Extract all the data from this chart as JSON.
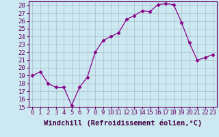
{
  "x": [
    0,
    1,
    2,
    3,
    4,
    5,
    6,
    7,
    8,
    9,
    10,
    11,
    12,
    13,
    14,
    15,
    16,
    17,
    18,
    19,
    20,
    21,
    22,
    23
  ],
  "y": [
    19.0,
    19.5,
    18.0,
    17.5,
    17.5,
    15.2,
    17.5,
    18.8,
    22.0,
    23.5,
    24.0,
    24.5,
    26.2,
    26.7,
    27.3,
    27.2,
    28.1,
    28.2,
    28.1,
    25.8,
    23.2,
    21.0,
    21.3,
    21.7
  ],
  "line_color": "#880088",
  "marker": "D",
  "marker_size": 2.5,
  "bg_color": "#cce8f0",
  "grid_color": "#aabbcc",
  "xlabel": "Windchill (Refroidissement éolien,°C)",
  "xlim": [
    -0.5,
    23.5
  ],
  "ylim": [
    15,
    28.5
  ],
  "yticks": [
    15,
    16,
    17,
    18,
    19,
    20,
    21,
    22,
    23,
    24,
    25,
    26,
    27,
    28
  ],
  "xticks": [
    0,
    1,
    2,
    3,
    4,
    5,
    6,
    7,
    8,
    9,
    10,
    11,
    12,
    13,
    14,
    15,
    16,
    17,
    18,
    19,
    20,
    21,
    22,
    23
  ],
  "tick_label_size": 6.5,
  "xlabel_size": 7.5
}
